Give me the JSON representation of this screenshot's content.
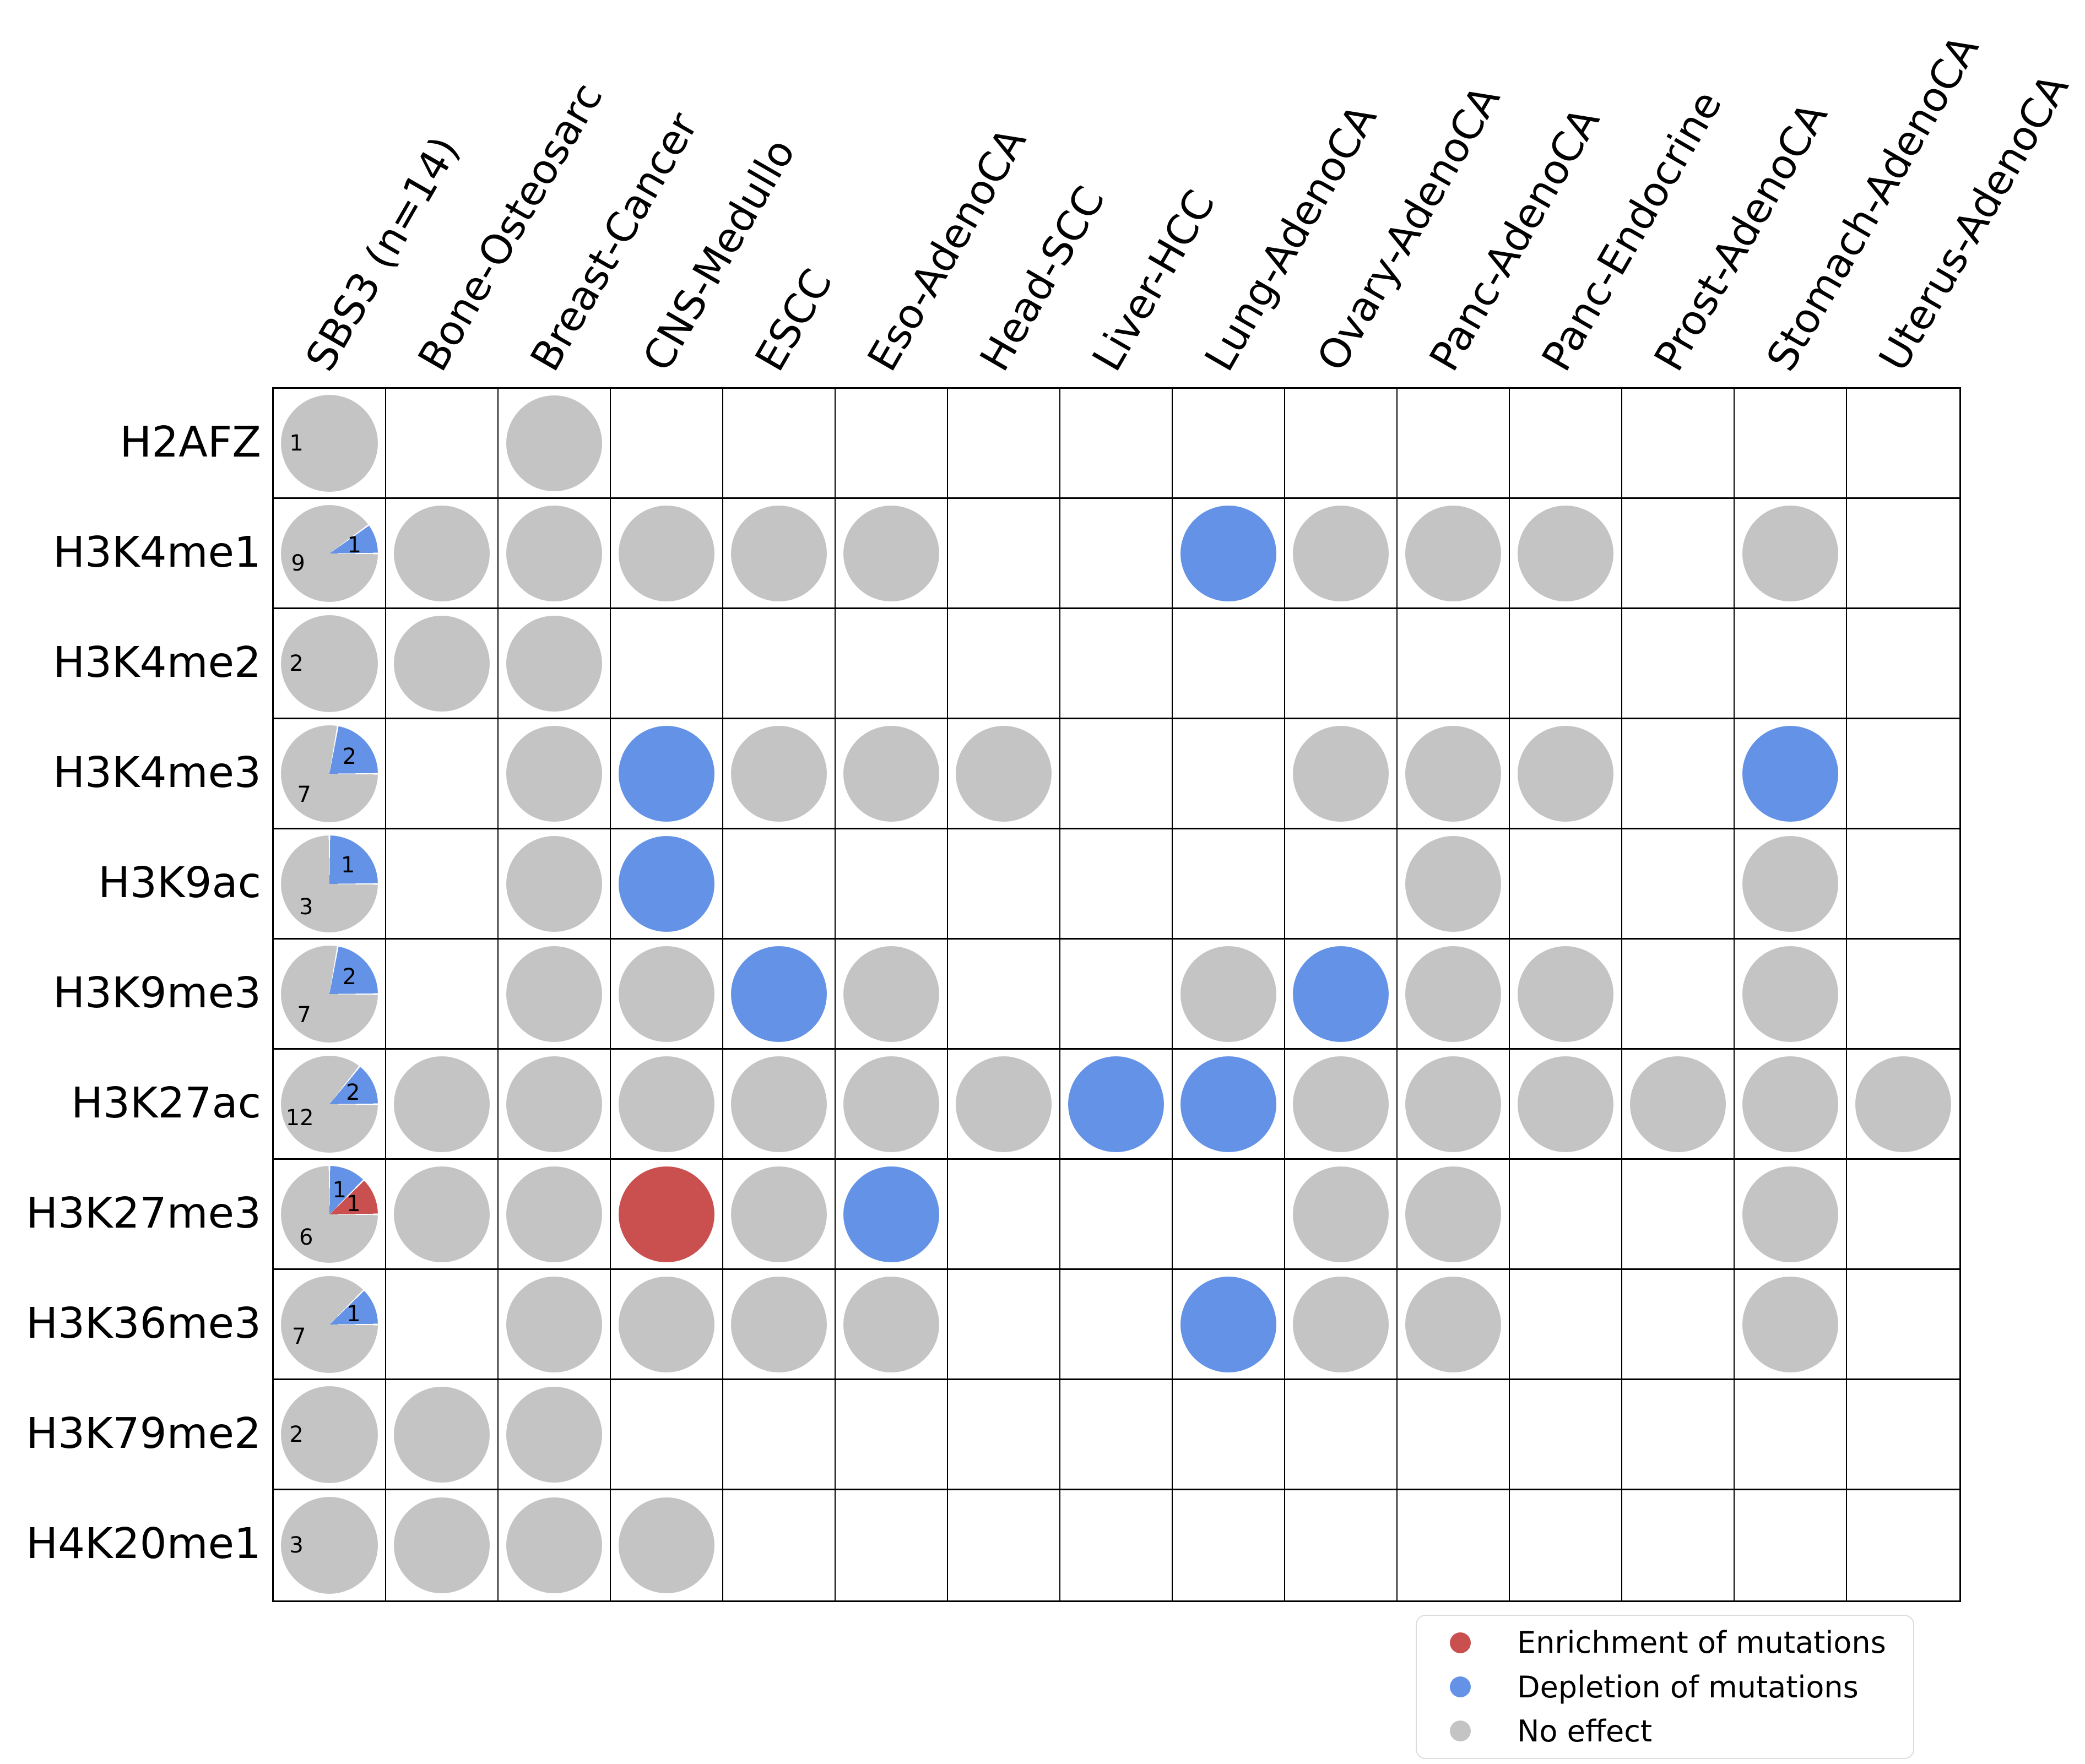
{
  "colors": {
    "enrichment": "#c9504e",
    "depletion": "#6392e6",
    "no_effect": "#c4c4c4",
    "grid_line": "#000000",
    "legend_border": "#dcdcdc",
    "background": "#ffffff"
  },
  "chart_data": {
    "type": "heatmap",
    "title": "",
    "columns": [
      "SBS3 (n=14)",
      "Bone-Osteosarc",
      "Breast-Cancer",
      "CNS-Medullo",
      "ESCC",
      "Eso-AdenoCA",
      "Head-SCC",
      "Liver-HCC",
      "Lung-AdenoCA",
      "Ovary-AdenoCA",
      "Panc-AdenoCA",
      "Panc-Endocrine",
      "Prost-AdenoCA",
      "Stomach-AdenoCA",
      "Uterus-AdenoCA"
    ],
    "slice_order": [
      "enrichment",
      "depletion",
      "no_effect"
    ],
    "rows": [
      {
        "label": "H2AFZ",
        "pie": {
          "enrichment": 0,
          "depletion": 0,
          "no_effect": 1
        },
        "cells": [
          "",
          "no_effect",
          "",
          "",
          "",
          "",
          "",
          "",
          "",
          "",
          "",
          "",
          "",
          ""
        ]
      },
      {
        "label": "H3K4me1",
        "pie": {
          "enrichment": 0,
          "depletion": 1,
          "no_effect": 9
        },
        "cells": [
          "no_effect",
          "no_effect",
          "no_effect",
          "no_effect",
          "no_effect",
          "",
          "",
          "depletion",
          "no_effect",
          "no_effect",
          "no_effect",
          "",
          "no_effect",
          ""
        ]
      },
      {
        "label": "H3K4me2",
        "pie": {
          "enrichment": 0,
          "depletion": 0,
          "no_effect": 2
        },
        "cells": [
          "no_effect",
          "no_effect",
          "",
          "",
          "",
          "",
          "",
          "",
          "",
          "",
          "",
          "",
          "",
          ""
        ]
      },
      {
        "label": "H3K4me3",
        "pie": {
          "enrichment": 0,
          "depletion": 2,
          "no_effect": 7
        },
        "cells": [
          "",
          "no_effect",
          "depletion",
          "no_effect",
          "no_effect",
          "no_effect",
          "",
          "",
          "no_effect",
          "no_effect",
          "no_effect",
          "",
          "depletion",
          ""
        ]
      },
      {
        "label": "H3K9ac",
        "pie": {
          "enrichment": 0,
          "depletion": 1,
          "no_effect": 3
        },
        "cells": [
          "",
          "no_effect",
          "depletion",
          "",
          "",
          "",
          "",
          "",
          "",
          "no_effect",
          "",
          "",
          "no_effect",
          ""
        ]
      },
      {
        "label": "H3K9me3",
        "pie": {
          "enrichment": 0,
          "depletion": 2,
          "no_effect": 7
        },
        "cells": [
          "",
          "no_effect",
          "no_effect",
          "depletion",
          "no_effect",
          "",
          "",
          "no_effect",
          "depletion",
          "no_effect",
          "no_effect",
          "",
          "no_effect",
          ""
        ]
      },
      {
        "label": "H3K27ac",
        "pie": {
          "enrichment": 0,
          "depletion": 2,
          "no_effect": 12
        },
        "cells": [
          "no_effect",
          "no_effect",
          "no_effect",
          "no_effect",
          "no_effect",
          "no_effect",
          "depletion",
          "depletion",
          "no_effect",
          "no_effect",
          "no_effect",
          "no_effect",
          "no_effect",
          "no_effect"
        ]
      },
      {
        "label": "H3K27me3",
        "pie": {
          "enrichment": 1,
          "depletion": 1,
          "no_effect": 6
        },
        "cells": [
          "no_effect",
          "no_effect",
          "enrichment",
          "no_effect",
          "depletion",
          "",
          "",
          "",
          "no_effect",
          "no_effect",
          "",
          "",
          "no_effect",
          ""
        ]
      },
      {
        "label": "H3K36me3",
        "pie": {
          "enrichment": 0,
          "depletion": 1,
          "no_effect": 7
        },
        "cells": [
          "",
          "no_effect",
          "no_effect",
          "no_effect",
          "no_effect",
          "",
          "",
          "depletion",
          "no_effect",
          "no_effect",
          "",
          "",
          "no_effect",
          ""
        ]
      },
      {
        "label": "H3K79me2",
        "pie": {
          "enrichment": 0,
          "depletion": 0,
          "no_effect": 2
        },
        "cells": [
          "no_effect",
          "no_effect",
          "",
          "",
          "",
          "",
          "",
          "",
          "",
          "",
          "",
          "",
          "",
          ""
        ]
      },
      {
        "label": "H4K20me1",
        "pie": {
          "enrichment": 0,
          "depletion": 0,
          "no_effect": 3
        },
        "cells": [
          "no_effect",
          "no_effect",
          "no_effect",
          "",
          "",
          "",
          "",
          "",
          "",
          "",
          "",
          "",
          "",
          ""
        ]
      }
    ],
    "legend": [
      {
        "key": "enrichment",
        "label": "Enrichment of mutations"
      },
      {
        "key": "depletion",
        "label": "Depletion of mutations"
      },
      {
        "key": "no_effect",
        "label": "No effect"
      }
    ]
  }
}
